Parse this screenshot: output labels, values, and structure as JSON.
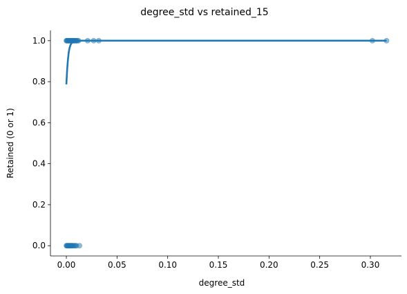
{
  "chart_data": {
    "type": "scatter",
    "title": "degree_std vs retained_15",
    "xlabel": "degree_std",
    "ylabel": "Retained (0 or 1)",
    "xlim": [
      -0.0157,
      0.3307
    ],
    "ylim": [
      -0.05,
      1.05
    ],
    "xticks": [
      0.0,
      0.05,
      0.1,
      0.15,
      0.2,
      0.25,
      0.3
    ],
    "xtick_labels": [
      "0.00",
      "0.05",
      "0.10",
      "0.15",
      "0.20",
      "0.25",
      "0.30"
    ],
    "yticks": [
      0.0,
      0.2,
      0.4,
      0.6,
      0.8,
      1.0
    ],
    "ytick_labels": [
      "0.0",
      "0.2",
      "0.4",
      "0.6",
      "0.8",
      "1.0"
    ],
    "grid": false,
    "color": "#1f77b4",
    "series": [
      {
        "kind": "points",
        "points": [
          [
            0.0,
            1
          ],
          [
            0.0005,
            1
          ],
          [
            0.001,
            1
          ],
          [
            0.0015,
            1
          ],
          [
            0.002,
            1
          ],
          [
            0.0025,
            1
          ],
          [
            0.003,
            1
          ],
          [
            0.0035,
            1
          ],
          [
            0.004,
            1
          ],
          [
            0.0045,
            1
          ],
          [
            0.005,
            1
          ],
          [
            0.0055,
            1
          ],
          [
            0.006,
            1
          ],
          [
            0.0065,
            1
          ],
          [
            0.007,
            1
          ],
          [
            0.0075,
            1
          ],
          [
            0.008,
            1
          ],
          [
            0.009,
            1
          ],
          [
            0.0095,
            1
          ],
          [
            0.01,
            1
          ],
          [
            0.011,
            1
          ],
          [
            0.012,
            1
          ],
          [
            0.021,
            1
          ],
          [
            0.027,
            1
          ],
          [
            0.032,
            1
          ],
          [
            0.302,
            1
          ],
          [
            0.316,
            1
          ],
          [
            0.0,
            0
          ],
          [
            0.0005,
            0
          ],
          [
            0.001,
            0
          ],
          [
            0.0015,
            0
          ],
          [
            0.002,
            0
          ],
          [
            0.0025,
            0
          ],
          [
            0.003,
            0
          ],
          [
            0.0035,
            0
          ],
          [
            0.004,
            0
          ],
          [
            0.0045,
            0
          ],
          [
            0.005,
            0
          ],
          [
            0.0055,
            0
          ],
          [
            0.006,
            0
          ],
          [
            0.007,
            0
          ],
          [
            0.008,
            0
          ],
          [
            0.009,
            0
          ],
          [
            0.01,
            0
          ],
          [
            0.013,
            0
          ]
        ]
      },
      {
        "kind": "fit",
        "points": [
          [
            0.0,
            0.787
          ],
          [
            0.0008,
            0.86
          ],
          [
            0.0016,
            0.91
          ],
          [
            0.0024,
            0.945
          ],
          [
            0.0032,
            0.965
          ],
          [
            0.004,
            0.978
          ],
          [
            0.005,
            0.987
          ],
          [
            0.006,
            0.992
          ],
          [
            0.008,
            0.997
          ],
          [
            0.01,
            0.999
          ],
          [
            0.015,
            1.0
          ],
          [
            0.05,
            1.0
          ],
          [
            0.1,
            1.0
          ],
          [
            0.2,
            1.0
          ],
          [
            0.316,
            1.0
          ]
        ]
      }
    ]
  }
}
